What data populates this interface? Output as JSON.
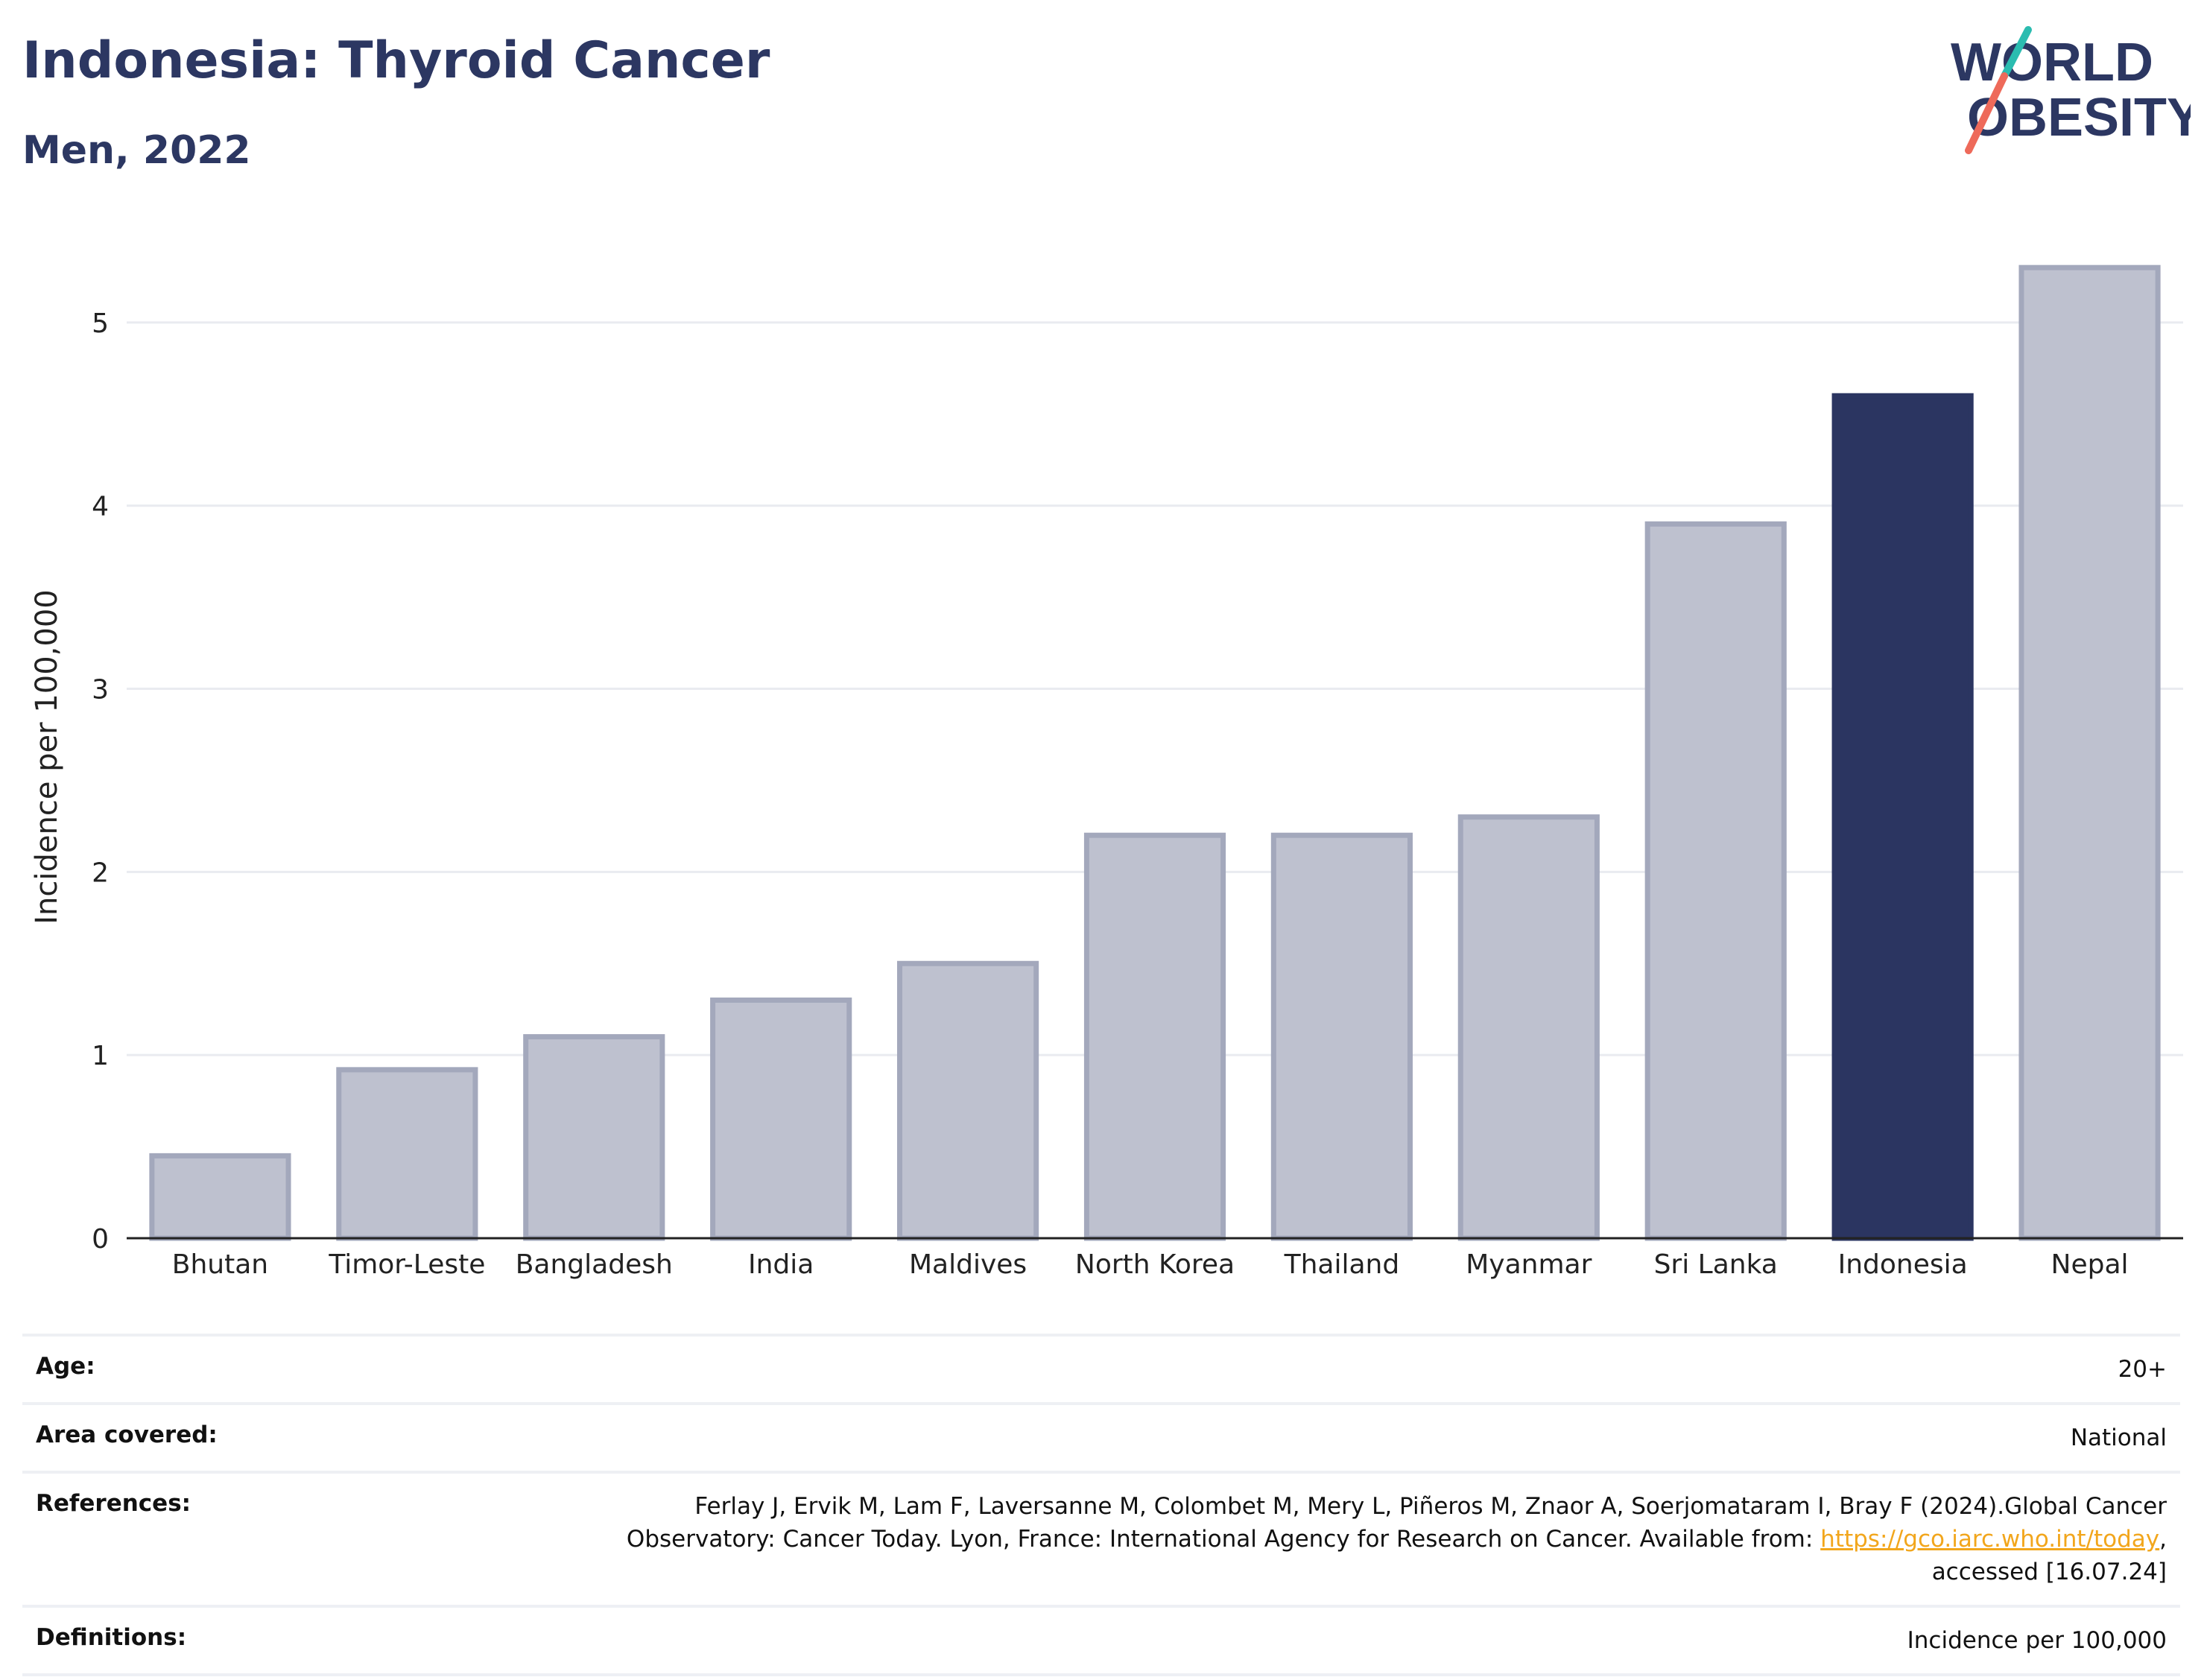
{
  "header": {
    "title": "Indonesia: Thyroid Cancer",
    "subtitle": "Men, 2022",
    "logo_line1": "WORLD",
    "logo_line2": "OBESITY"
  },
  "chart_data": {
    "type": "bar",
    "categories": [
      "Bhutan",
      "Timor-Leste",
      "Bangladesh",
      "India",
      "Maldives",
      "North Korea",
      "Thailand",
      "Myanmar",
      "Sri Lanka",
      "Indonesia",
      "Nepal"
    ],
    "values": [
      0.45,
      0.92,
      1.1,
      1.3,
      1.5,
      2.2,
      2.2,
      2.3,
      3.9,
      4.6,
      5.3
    ],
    "highlight": "Indonesia",
    "ylabel": "Incidence per 100,000",
    "ylim": [
      0,
      5.5
    ],
    "yticks": [
      0,
      1,
      2,
      3,
      4,
      5
    ],
    "grid": true,
    "colors": {
      "bar": "#bec1cf",
      "bar_border": "#a3a8bc",
      "highlight": "#2b3561",
      "grid": "#e9ebf0",
      "axis": "#222222"
    }
  },
  "metadata": {
    "age_label": "Age:",
    "age_value": "20+",
    "area_label": "Area covered:",
    "area_value": "National",
    "references_label": "References:",
    "references_line1": "Ferlay J, Ervik M, Lam F, Laversanne M, Colombet M, Mery L, Piñeros M, Znaor A, Soerjomataram I, Bray F (2024).Global Cancer",
    "references_line2": "Observatory: Cancer Today. Lyon, France: International Agency for Research on Cancer. Available from: ",
    "references_link": "https://gco.iarc.who.int/today",
    "references_line3": "accessed [16.07.24]",
    "definitions_label": "Definitions:",
    "definitions_value": "Incidence per 100,000"
  }
}
